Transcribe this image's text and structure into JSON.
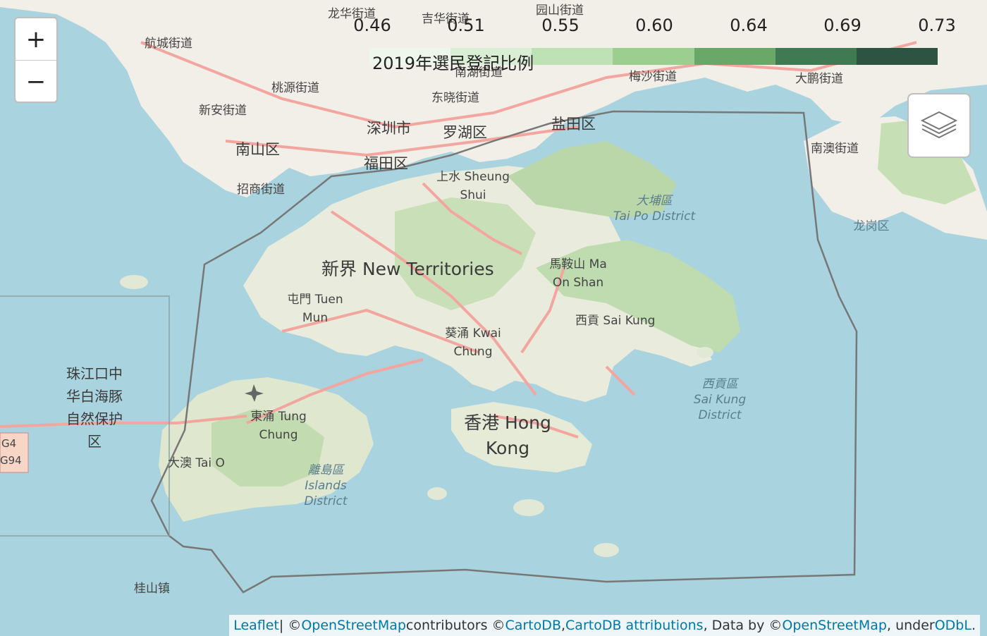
{
  "controls": {
    "zoom_in": "+",
    "zoom_out": "−",
    "layers_icon": "layers-icon"
  },
  "legend": {
    "ticks": [
      "0.46",
      "0.51",
      "0.55",
      "0.60",
      "0.64",
      "0.69",
      "0.73"
    ],
    "caption": "2019年選民登記比例",
    "colors": [
      "#eef7ec",
      "#d9eed4",
      "#bfe1b6",
      "#9ccf8f",
      "#6aa86a",
      "#3f7a52",
      "#2d5443"
    ]
  },
  "places": {
    "shenzhen": "深圳市",
    "luohu": "罗湖区",
    "yantian": "盐田区",
    "nanshan": "南山区",
    "futian": "福田区",
    "hangcheng": "航城街道",
    "taoyuan": "桃源街道",
    "xinan": "新安街道",
    "zhaoshang": "招商街道",
    "longhua": "龙华街道",
    "jihua": "吉华街道",
    "yuanshan": "园山街道",
    "nanhu": "南湖街道",
    "dongxiao": "东晓街道",
    "meisha": "梅沙街道",
    "dapeng": "大鹏街道",
    "nanao": "南澳街道",
    "longgang": "龙岗区",
    "sheung_shui_1": "上水 Sheung",
    "sheung_shui_2": "Shui",
    "tai_po_1": "大埔區",
    "tai_po_2": "Tai Po District",
    "new_territories": "新界 New Territories",
    "ma_on_shan_1": "馬鞍山 Ma",
    "ma_on_shan_2": "On Shan",
    "tuen_mun_1": "屯門 Tuen",
    "tuen_mun_2": "Mun",
    "sai_kung": "西貢 Sai Kung",
    "kwai_chung_1": "葵涌 Kwai",
    "kwai_chung_2": "Chung",
    "sai_kung_d_1": "西貢區",
    "sai_kung_d_2": "Sai Kung",
    "sai_kung_d_3": "District",
    "reserve_1": "珠江口中",
    "reserve_2": "华白海豚",
    "reserve_3": "自然保护",
    "reserve_4": "区",
    "tung_chung_1": "東涌 Tung",
    "tung_chung_2": "Chung",
    "hong_kong_1": "香港 Hong",
    "hong_kong_2": "Kong",
    "tai_o": "大澳 Tai O",
    "islands_1": "離島區",
    "islands_2": "Islands",
    "islands_3": "District",
    "guishan": "桂山镇",
    "road_g4": "G4",
    "road_g94": "G94"
  },
  "attribution": {
    "leaflet": "Leaflet",
    "sep": " | © ",
    "osm": "OpenStreetMap",
    "contrib": " contributors © ",
    "carto": "CartoDB",
    "comma": ", ",
    "carto_attr": "CartoDB attributions",
    "data_by": ", Data by © ",
    "osm2": "OpenStreetMap",
    "under": ", under ",
    "odbl": "ODbL",
    "end": "."
  }
}
